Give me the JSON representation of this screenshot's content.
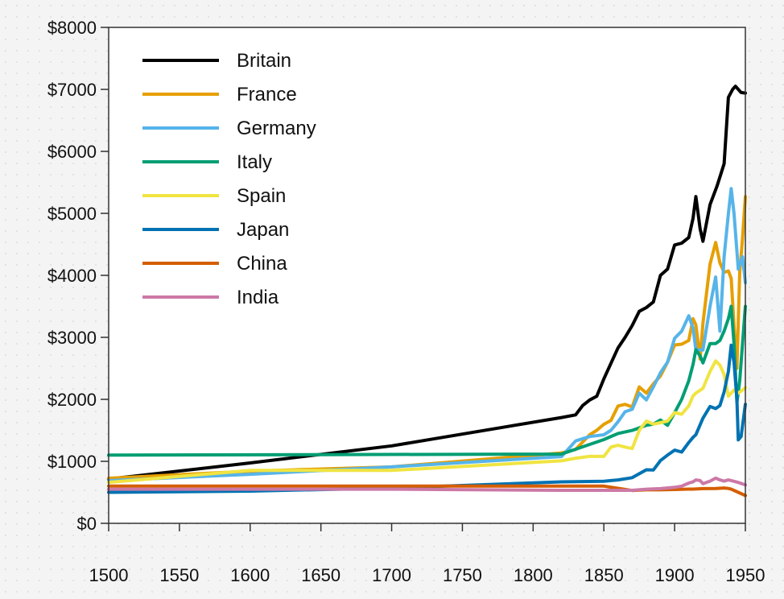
{
  "chart_data": {
    "type": "line",
    "title": "",
    "xlabel": "",
    "ylabel": "",
    "xlim": [
      1500,
      1950
    ],
    "ylim": [
      0,
      8000
    ],
    "grid": false,
    "legend_position": "top-left",
    "x_ticks": [
      1500,
      1550,
      1600,
      1650,
      1700,
      1750,
      1800,
      1850,
      1900,
      1950
    ],
    "y_ticks": [
      0,
      1000,
      2000,
      3000,
      4000,
      5000,
      6000,
      7000,
      8000
    ],
    "x_tick_labels": [
      "1500",
      "1550",
      "1600",
      "1650",
      "1700",
      "1750",
      "1800",
      "1850",
      "1900",
      "1950"
    ],
    "y_tick_labels": [
      "$0",
      "$1000",
      "$2000",
      "$3000",
      "$4000",
      "$5000",
      "$6000",
      "$7000",
      "$8000"
    ],
    "series": [
      {
        "name": "Britain",
        "color": "#000000",
        "points": [
          [
            1500,
            714
          ],
          [
            1600,
            974
          ],
          [
            1700,
            1250
          ],
          [
            1820,
            1706
          ],
          [
            1830,
            1749
          ],
          [
            1835,
            1900
          ],
          [
            1840,
            1990
          ],
          [
            1845,
            2050
          ],
          [
            1850,
            2330
          ],
          [
            1855,
            2580
          ],
          [
            1860,
            2830
          ],
          [
            1865,
            3000
          ],
          [
            1870,
            3190
          ],
          [
            1875,
            3420
          ],
          [
            1880,
            3480
          ],
          [
            1885,
            3570
          ],
          [
            1890,
            4000
          ],
          [
            1895,
            4100
          ],
          [
            1900,
            4490
          ],
          [
            1905,
            4520
          ],
          [
            1910,
            4610
          ],
          [
            1913,
            4920
          ],
          [
            1915,
            5270
          ],
          [
            1918,
            4750
          ],
          [
            1920,
            4550
          ],
          [
            1925,
            5140
          ],
          [
            1930,
            5440
          ],
          [
            1935,
            5800
          ],
          [
            1938,
            6870
          ],
          [
            1941,
            7000
          ],
          [
            1943,
            7050
          ],
          [
            1947,
            6950
          ],
          [
            1950,
            6940
          ]
        ]
      },
      {
        "name": "France",
        "color": "#e69f00",
        "points": [
          [
            1500,
            727
          ],
          [
            1600,
            841
          ],
          [
            1700,
            910
          ],
          [
            1820,
            1135
          ],
          [
            1830,
            1191
          ],
          [
            1840,
            1428
          ],
          [
            1845,
            1500
          ],
          [
            1850,
            1597
          ],
          [
            1855,
            1660
          ],
          [
            1860,
            1892
          ],
          [
            1865,
            1920
          ],
          [
            1870,
            1876
          ],
          [
            1875,
            2200
          ],
          [
            1880,
            2100
          ],
          [
            1885,
            2250
          ],
          [
            1890,
            2376
          ],
          [
            1895,
            2600
          ],
          [
            1900,
            2876
          ],
          [
            1905,
            2890
          ],
          [
            1910,
            2950
          ],
          [
            1913,
            3300
          ],
          [
            1915,
            3200
          ],
          [
            1918,
            2650
          ],
          [
            1920,
            3227
          ],
          [
            1925,
            4180
          ],
          [
            1929,
            4530
          ],
          [
            1932,
            4200
          ],
          [
            1935,
            4050
          ],
          [
            1938,
            4070
          ],
          [
            1940,
            3950
          ],
          [
            1942,
            3200
          ],
          [
            1944,
            2500
          ],
          [
            1946,
            4050
          ],
          [
            1948,
            4600
          ],
          [
            1950,
            5270
          ]
        ]
      },
      {
        "name": "Germany",
        "color": "#56b4e9",
        "points": [
          [
            1500,
            688
          ],
          [
            1600,
            791
          ],
          [
            1700,
            910
          ],
          [
            1820,
            1077
          ],
          [
            1830,
            1328
          ],
          [
            1840,
            1400
          ],
          [
            1850,
            1428
          ],
          [
            1855,
            1500
          ],
          [
            1860,
            1639
          ],
          [
            1865,
            1800
          ],
          [
            1870,
            1839
          ],
          [
            1875,
            2100
          ],
          [
            1880,
            1991
          ],
          [
            1885,
            2200
          ],
          [
            1890,
            2428
          ],
          [
            1895,
            2600
          ],
          [
            1900,
            2985
          ],
          [
            1905,
            3100
          ],
          [
            1910,
            3348
          ],
          [
            1913,
            3150
          ],
          [
            1915,
            2800
          ],
          [
            1920,
            2796
          ],
          [
            1925,
            3500
          ],
          [
            1929,
            3973
          ],
          [
            1932,
            3100
          ],
          [
            1935,
            4300
          ],
          [
            1938,
            4994
          ],
          [
            1940,
            5400
          ],
          [
            1942,
            5000
          ],
          [
            1945,
            4100
          ],
          [
            1948,
            4300
          ],
          [
            1950,
            3881
          ]
        ]
      },
      {
        "name": "Italy",
        "color": "#009e73",
        "points": [
          [
            1500,
            1100
          ],
          [
            1820,
            1117
          ],
          [
            1850,
            1350
          ],
          [
            1860,
            1450
          ],
          [
            1870,
            1499
          ],
          [
            1880,
            1581
          ],
          [
            1885,
            1600
          ],
          [
            1890,
            1667
          ],
          [
            1895,
            1580
          ],
          [
            1900,
            1785
          ],
          [
            1905,
            2000
          ],
          [
            1910,
            2300
          ],
          [
            1913,
            2564
          ],
          [
            1915,
            2800
          ],
          [
            1918,
            2700
          ],
          [
            1920,
            2587
          ],
          [
            1925,
            2900
          ],
          [
            1929,
            2900
          ],
          [
            1932,
            2950
          ],
          [
            1935,
            3100
          ],
          [
            1938,
            3300
          ],
          [
            1940,
            3500
          ],
          [
            1942,
            2900
          ],
          [
            1944,
            1950
          ],
          [
            1946,
            2300
          ],
          [
            1948,
            2900
          ],
          [
            1950,
            3500
          ]
        ]
      },
      {
        "name": "Spain",
        "color": "#f0e442",
        "points": [
          [
            1500,
            661
          ],
          [
            1600,
            853
          ],
          [
            1700,
            853
          ],
          [
            1820,
            1008
          ],
          [
            1830,
            1050
          ],
          [
            1840,
            1080
          ],
          [
            1850,
            1079
          ],
          [
            1855,
            1230
          ],
          [
            1860,
            1260
          ],
          [
            1865,
            1230
          ],
          [
            1870,
            1207
          ],
          [
            1875,
            1500
          ],
          [
            1880,
            1650
          ],
          [
            1885,
            1600
          ],
          [
            1890,
            1624
          ],
          [
            1895,
            1650
          ],
          [
            1900,
            1786
          ],
          [
            1905,
            1760
          ],
          [
            1910,
            1895
          ],
          [
            1913,
            2056
          ],
          [
            1915,
            2100
          ],
          [
            1920,
            2177
          ],
          [
            1925,
            2450
          ],
          [
            1929,
            2620
          ],
          [
            1932,
            2550
          ],
          [
            1935,
            2400
          ],
          [
            1938,
            2050
          ],
          [
            1940,
            2100
          ],
          [
            1942,
            2150
          ],
          [
            1945,
            2100
          ],
          [
            1948,
            2150
          ],
          [
            1950,
            2189
          ]
        ]
      },
      {
        "name": "Japan",
        "color": "#0072b2",
        "points": [
          [
            1500,
            500
          ],
          [
            1600,
            520
          ],
          [
            1700,
            570
          ],
          [
            1820,
            669
          ],
          [
            1850,
            679
          ],
          [
            1860,
            700
          ],
          [
            1870,
            737
          ],
          [
            1875,
            800
          ],
          [
            1880,
            863
          ],
          [
            1885,
            860
          ],
          [
            1890,
            1012
          ],
          [
            1895,
            1100
          ],
          [
            1900,
            1180
          ],
          [
            1905,
            1150
          ],
          [
            1910,
            1304
          ],
          [
            1913,
            1387
          ],
          [
            1915,
            1430
          ],
          [
            1920,
            1696
          ],
          [
            1925,
            1885
          ],
          [
            1929,
            1850
          ],
          [
            1932,
            1900
          ],
          [
            1935,
            2120
          ],
          [
            1938,
            2449
          ],
          [
            1940,
            2874
          ],
          [
            1942,
            2600
          ],
          [
            1944,
            2000
          ],
          [
            1945,
            1346
          ],
          [
            1947,
            1400
          ],
          [
            1950,
            1921
          ]
        ]
      },
      {
        "name": "China",
        "color": "#d55e00",
        "points": [
          [
            1500,
            600
          ],
          [
            1600,
            600
          ],
          [
            1700,
            600
          ],
          [
            1820,
            600
          ],
          [
            1850,
            600
          ],
          [
            1870,
            530
          ],
          [
            1880,
            540
          ],
          [
            1890,
            540
          ],
          [
            1900,
            545
          ],
          [
            1910,
            552
          ],
          [
            1913,
            552
          ],
          [
            1920,
            560
          ],
          [
            1929,
            562
          ],
          [
            1935,
            570
          ],
          [
            1938,
            562
          ],
          [
            1940,
            550
          ],
          [
            1945,
            500
          ],
          [
            1950,
            448
          ]
        ]
      },
      {
        "name": "India",
        "color": "#cc79a7",
        "points": [
          [
            1500,
            550
          ],
          [
            1600,
            550
          ],
          [
            1700,
            550
          ],
          [
            1820,
            533
          ],
          [
            1850,
            533
          ],
          [
            1870,
            533
          ],
          [
            1880,
            550
          ],
          [
            1890,
            560
          ],
          [
            1900,
            580
          ],
          [
            1905,
            600
          ],
          [
            1910,
            650
          ],
          [
            1913,
            670
          ],
          [
            1915,
            700
          ],
          [
            1918,
            690
          ],
          [
            1920,
            640
          ],
          [
            1925,
            680
          ],
          [
            1929,
            728
          ],
          [
            1932,
            700
          ],
          [
            1935,
            680
          ],
          [
            1938,
            700
          ],
          [
            1940,
            690
          ],
          [
            1945,
            660
          ],
          [
            1950,
            619
          ]
        ]
      }
    ]
  }
}
